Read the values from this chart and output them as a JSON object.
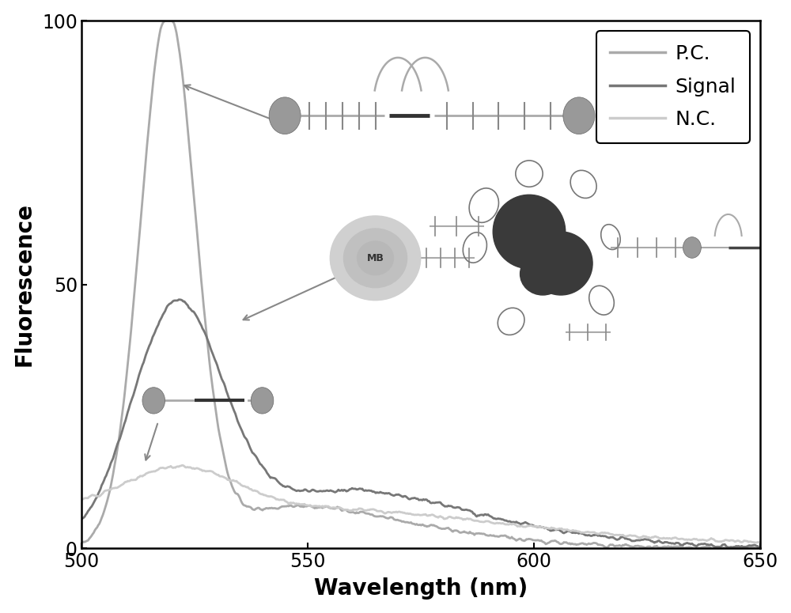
{
  "xlabel": "Wavelength (nm)",
  "ylabel": "Fluorescence",
  "xlim": [
    500,
    650
  ],
  "ylim": [
    0,
    100
  ],
  "xticks": [
    500,
    550,
    600,
    650
  ],
  "yticks": [
    0,
    50,
    100
  ],
  "background_color": "#ffffff",
  "legend_labels": [
    "P.C.",
    "Signal",
    "N.C."
  ],
  "pc_color": "#aaaaaa",
  "signal_color": "#777777",
  "nc_color": "#cccccc",
  "line_width": 2.0,
  "pc_peak_x": 519,
  "pc_peak_y": 100,
  "signal_peak_x": 521,
  "signal_peak_y": 44,
  "nc_peak_x": 522,
  "nc_peak_y": 15,
  "nc_baseline": 7
}
